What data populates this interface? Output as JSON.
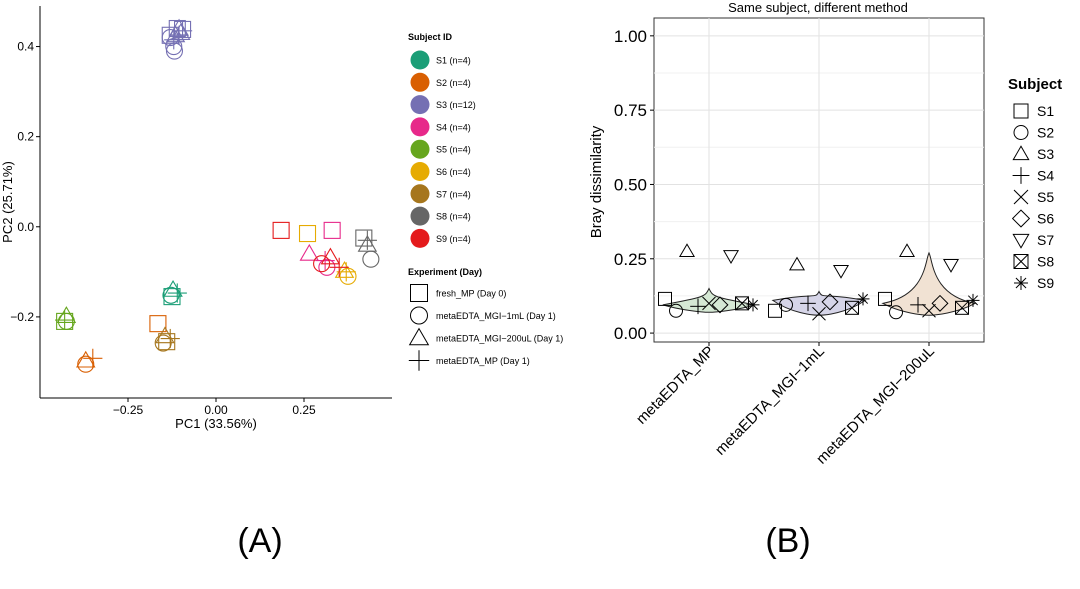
{
  "figure": {
    "panel_labels": [
      "(A)",
      "(B)"
    ]
  },
  "chart_data": [
    {
      "type": "scatter",
      "panel": "(A)",
      "xlabel": "PC1 (33.56%)",
      "ylabel": "PC2 (25.71%)",
      "xlim": [
        -0.5,
        0.5
      ],
      "ylim": [
        -0.38,
        0.49
      ],
      "xticks": [
        -0.25,
        0.0,
        0.25
      ],
      "xtick_labels": [
        "−0.25",
        "0.00",
        "0.25"
      ],
      "yticks": [
        -0.2,
        0.0,
        0.2,
        0.4
      ],
      "ytick_labels": [
        "−0.2",
        "0.0",
        "0.2",
        "0.4"
      ],
      "grid": false,
      "legend_position": "right",
      "legend_subject_title": "Subject ID",
      "legend_experiment_title": "Experiment (Day)",
      "subjects": [
        {
          "id": "S1",
          "label": "S1 (n=4)",
          "color": "#1b9e77"
        },
        {
          "id": "S2",
          "label": "S2 (n=4)",
          "color": "#d95f02"
        },
        {
          "id": "S3",
          "label": "S3 (n=12)",
          "color": "#7570b3"
        },
        {
          "id": "S4",
          "label": "S4 (n=4)",
          "color": "#e7298a"
        },
        {
          "id": "S5",
          "label": "S5 (n=4)",
          "color": "#66a61e"
        },
        {
          "id": "S6",
          "label": "S6 (n=4)",
          "color": "#e6ab02"
        },
        {
          "id": "S7",
          "label": "S7 (n=4)",
          "color": "#a6761d"
        },
        {
          "id": "S8",
          "label": "S8 (n=4)",
          "color": "#666666"
        },
        {
          "id": "S9",
          "label": "S9 (n=4)",
          "color": "#e41a1c"
        }
      ],
      "experiments": [
        {
          "id": "fresh",
          "label": "fresh_MP (Day 0)",
          "shape": "square"
        },
        {
          "id": "mgi1",
          "label": "metaEDTA_MGI−1mL (Day 1)",
          "shape": "circle"
        },
        {
          "id": "mgi200",
          "label": "metaEDTA_MGI−200uL (Day 1)",
          "shape": "triangle"
        },
        {
          "id": "mp",
          "label": "metaEDTA_MP (Day 1)",
          "shape": "plus"
        }
      ],
      "points": [
        {
          "subject": "S1",
          "exp": "fresh",
          "x": -0.125,
          "y": -0.155
        },
        {
          "subject": "S1",
          "exp": "mgi1",
          "x": -0.128,
          "y": -0.152
        },
        {
          "subject": "S1",
          "exp": "mgi200",
          "x": -0.122,
          "y": -0.14
        },
        {
          "subject": "S1",
          "exp": "mp",
          "x": -0.11,
          "y": -0.147
        },
        {
          "subject": "S2",
          "exp": "fresh",
          "x": -0.165,
          "y": -0.215
        },
        {
          "subject": "S2",
          "exp": "mgi1",
          "x": -0.37,
          "y": -0.305
        },
        {
          "subject": "S2",
          "exp": "mgi200",
          "x": -0.37,
          "y": -0.297
        },
        {
          "subject": "S2",
          "exp": "mp",
          "x": -0.35,
          "y": -0.292
        },
        {
          "subject": "S3",
          "exp": "fresh",
          "x": -0.11,
          "y": 0.44
        },
        {
          "subject": "S3",
          "exp": "fresh",
          "x": -0.095,
          "y": 0.438
        },
        {
          "subject": "S3",
          "exp": "fresh",
          "x": -0.13,
          "y": 0.425
        },
        {
          "subject": "S3",
          "exp": "mgi1",
          "x": -0.13,
          "y": 0.42
        },
        {
          "subject": "S3",
          "exp": "mgi1",
          "x": -0.12,
          "y": 0.4
        },
        {
          "subject": "S3",
          "exp": "mgi1",
          "x": -0.118,
          "y": 0.39
        },
        {
          "subject": "S3",
          "exp": "mgi200",
          "x": -0.105,
          "y": 0.44
        },
        {
          "subject": "S3",
          "exp": "mgi200",
          "x": -0.1,
          "y": 0.43
        },
        {
          "subject": "S3",
          "exp": "mgi200",
          "x": -0.115,
          "y": 0.425
        },
        {
          "subject": "S3",
          "exp": "mp",
          "x": -0.105,
          "y": 0.425
        },
        {
          "subject": "S3",
          "exp": "mp",
          "x": -0.12,
          "y": 0.415
        },
        {
          "subject": "S3",
          "exp": "mp",
          "x": -0.095,
          "y": 0.435
        },
        {
          "subject": "S4",
          "exp": "fresh",
          "x": 0.33,
          "y": -0.008
        },
        {
          "subject": "S4",
          "exp": "mgi1",
          "x": 0.315,
          "y": -0.09
        },
        {
          "subject": "S4",
          "exp": "mgi200",
          "x": 0.265,
          "y": -0.06
        },
        {
          "subject": "S4",
          "exp": "mp",
          "x": 0.31,
          "y": -0.075
        },
        {
          "subject": "S5",
          "exp": "fresh",
          "x": -0.43,
          "y": -0.21
        },
        {
          "subject": "S5",
          "exp": "mgi1",
          "x": -0.425,
          "y": -0.21
        },
        {
          "subject": "S5",
          "exp": "mgi200",
          "x": -0.425,
          "y": -0.198
        },
        {
          "subject": "S5",
          "exp": "mp",
          "x": -0.43,
          "y": -0.207
        },
        {
          "subject": "S6",
          "exp": "fresh",
          "x": 0.26,
          "y": -0.015
        },
        {
          "subject": "S6",
          "exp": "mgi1",
          "x": 0.375,
          "y": -0.11
        },
        {
          "subject": "S6",
          "exp": "mgi200",
          "x": 0.365,
          "y": -0.098
        },
        {
          "subject": "S6",
          "exp": "mp",
          "x": 0.37,
          "y": -0.1
        },
        {
          "subject": "S7",
          "exp": "fresh",
          "x": -0.14,
          "y": -0.255
        },
        {
          "subject": "S7",
          "exp": "mgi1",
          "x": -0.15,
          "y": -0.258
        },
        {
          "subject": "S7",
          "exp": "mgi200",
          "x": -0.145,
          "y": -0.243
        },
        {
          "subject": "S7",
          "exp": "mp",
          "x": -0.13,
          "y": -0.248
        },
        {
          "subject": "S8",
          "exp": "fresh",
          "x": 0.42,
          "y": -0.025
        },
        {
          "subject": "S8",
          "exp": "mgi1",
          "x": 0.44,
          "y": -0.072
        },
        {
          "subject": "S8",
          "exp": "mgi200",
          "x": 0.43,
          "y": -0.04
        },
        {
          "subject": "S8",
          "exp": "mp",
          "x": 0.43,
          "y": -0.03
        },
        {
          "subject": "S9",
          "exp": "fresh",
          "x": 0.185,
          "y": -0.008
        },
        {
          "subject": "S9",
          "exp": "mgi1",
          "x": 0.3,
          "y": -0.082
        },
        {
          "subject": "S9",
          "exp": "mgi200",
          "x": 0.325,
          "y": -0.068
        },
        {
          "subject": "S9",
          "exp": "mp",
          "x": 0.35,
          "y": -0.09
        }
      ]
    },
    {
      "type": "scatter",
      "subtype": "violin",
      "panel": "(B)",
      "title": "Same subject, different method",
      "xlabel": "",
      "ylabel": "Bray dissimilarity",
      "categories": [
        "metaEDTA_MP",
        "metaEDTA_MGI−1mL",
        "metaEDTA_MGI−200uL"
      ],
      "ylim": [
        -0.03,
        1.06
      ],
      "yticks": [
        0.0,
        0.25,
        0.5,
        0.75,
        1.0
      ],
      "ytick_labels": [
        "0.00",
        "0.25",
        "0.50",
        "0.75",
        "1.00"
      ],
      "grid": true,
      "legend_position": "right",
      "legend_title": "Subject",
      "violin_fills": [
        "#d5e8d4",
        "#d6d5e8",
        "#f1e2d3"
      ],
      "violins": [
        {
          "category": "metaEDTA_MP",
          "min": 0.07,
          "max": 0.15,
          "widest": 0.095
        },
        {
          "category": "metaEDTA_MGI−1mL",
          "min": 0.06,
          "max": 0.14,
          "widest": 0.11
        },
        {
          "category": "metaEDTA_MGI−200uL",
          "min": 0.06,
          "max": 0.27,
          "widest": 0.1
        }
      ],
      "subjects": [
        {
          "id": "S1",
          "shape": "square"
        },
        {
          "id": "S2",
          "shape": "circle"
        },
        {
          "id": "S3",
          "shape": "triangle"
        },
        {
          "id": "S4",
          "shape": "plus"
        },
        {
          "id": "S5",
          "shape": "cross"
        },
        {
          "id": "S6",
          "shape": "diamond"
        },
        {
          "id": "S7",
          "shape": "triangle-down"
        },
        {
          "id": "S8",
          "shape": "boxed-x"
        },
        {
          "id": "S9",
          "shape": "asterisk"
        }
      ],
      "points": [
        {
          "category": "metaEDTA_MP",
          "subject": "S1",
          "y": 0.115
        },
        {
          "category": "metaEDTA_MP",
          "subject": "S2",
          "y": 0.075
        },
        {
          "category": "metaEDTA_MP",
          "subject": "S3",
          "y": 0.275
        },
        {
          "category": "metaEDTA_MP",
          "subject": "S4",
          "y": 0.09
        },
        {
          "category": "metaEDTA_MP",
          "subject": "S5",
          "y": 0.1
        },
        {
          "category": "metaEDTA_MP",
          "subject": "S6",
          "y": 0.095
        },
        {
          "category": "metaEDTA_MP",
          "subject": "S7",
          "y": 0.26
        },
        {
          "category": "metaEDTA_MP",
          "subject": "S8",
          "y": 0.1
        },
        {
          "category": "metaEDTA_MP",
          "subject": "S9",
          "y": 0.095
        },
        {
          "category": "metaEDTA_MGI−1mL",
          "subject": "S1",
          "y": 0.075
        },
        {
          "category": "metaEDTA_MGI−1mL",
          "subject": "S2",
          "y": 0.095
        },
        {
          "category": "metaEDTA_MGI−1mL",
          "subject": "S3",
          "y": 0.23
        },
        {
          "category": "metaEDTA_MGI−1mL",
          "subject": "S4",
          "y": 0.1
        },
        {
          "category": "metaEDTA_MGI−1mL",
          "subject": "S5",
          "y": 0.065
        },
        {
          "category": "metaEDTA_MGI−1mL",
          "subject": "S6",
          "y": 0.105
        },
        {
          "category": "metaEDTA_MGI−1mL",
          "subject": "S7",
          "y": 0.21
        },
        {
          "category": "metaEDTA_MGI−1mL",
          "subject": "S8",
          "y": 0.085
        },
        {
          "category": "metaEDTA_MGI−1mL",
          "subject": "S9",
          "y": 0.115
        },
        {
          "category": "metaEDTA_MGI−200uL",
          "subject": "S1",
          "y": 0.115
        },
        {
          "category": "metaEDTA_MGI−200uL",
          "subject": "S2",
          "y": 0.07
        },
        {
          "category": "metaEDTA_MGI−200uL",
          "subject": "S3",
          "y": 0.275
        },
        {
          "category": "metaEDTA_MGI−200uL",
          "subject": "S4",
          "y": 0.095
        },
        {
          "category": "metaEDTA_MGI−200uL",
          "subject": "S5",
          "y": 0.075
        },
        {
          "category": "metaEDTA_MGI−200uL",
          "subject": "S6",
          "y": 0.1
        },
        {
          "category": "metaEDTA_MGI−200uL",
          "subject": "S7",
          "y": 0.23
        },
        {
          "category": "metaEDTA_MGI−200uL",
          "subject": "S8",
          "y": 0.085
        },
        {
          "category": "metaEDTA_MGI−200uL",
          "subject": "S9",
          "y": 0.11
        }
      ]
    }
  ]
}
